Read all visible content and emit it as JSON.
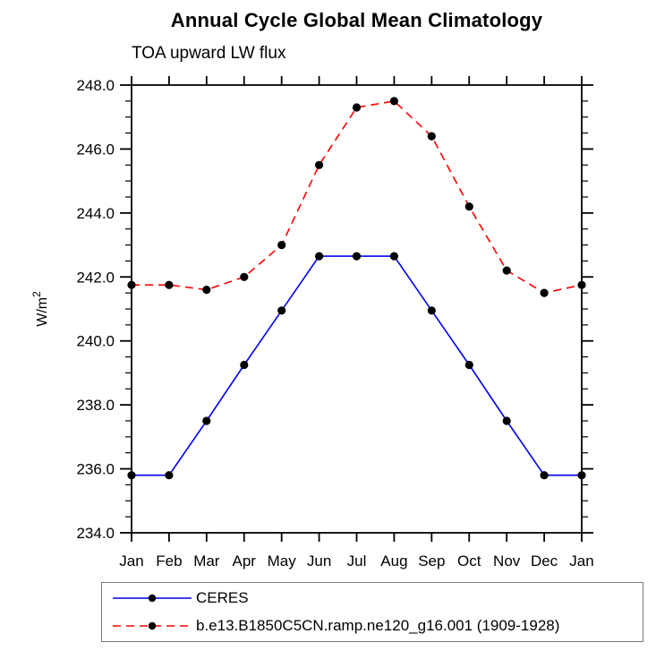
{
  "title": "Annual Cycle Global Mean Climatology",
  "subtitle": "TOA upward LW flux",
  "chart_data": {
    "type": "line",
    "categories": [
      "Jan",
      "Feb",
      "Mar",
      "Apr",
      "May",
      "Jun",
      "Jul",
      "Aug",
      "Sep",
      "Oct",
      "Nov",
      "Dec",
      "Jan"
    ],
    "series": [
      {
        "name": "CERES",
        "color": "#0000ee",
        "line_style": "solid",
        "marker": "filled-circle",
        "marker_color": "#000000",
        "values": [
          235.8,
          235.8,
          237.5,
          239.25,
          240.95,
          242.65,
          242.65,
          242.65,
          240.95,
          239.25,
          237.5,
          235.8,
          235.8
        ]
      },
      {
        "name": "b.e13.B1850C5CN.ramp.ne120_g16.001 (1909-1928)",
        "color": "#ff0000",
        "line_style": "dashed",
        "marker": "filled-circle",
        "marker_color": "#000000",
        "values": [
          241.75,
          241.75,
          241.6,
          242.0,
          243.0,
          245.5,
          247.3,
          247.5,
          246.4,
          244.2,
          242.2,
          241.5,
          241.75
        ]
      }
    ],
    "ylabel": "W/m²",
    "ylim": [
      234.0,
      248.0
    ],
    "ytick_major_interval": 2.0,
    "ytick_minor_interval": 0.5,
    "y_tick_labels": [
      "234.0",
      "236.0",
      "238.0",
      "240.0",
      "242.0",
      "244.0",
      "246.0",
      "248.0"
    ],
    "grid": false,
    "tick_direction": "outward",
    "legend_position": "bottom-left",
    "axis_color": "#000000"
  }
}
